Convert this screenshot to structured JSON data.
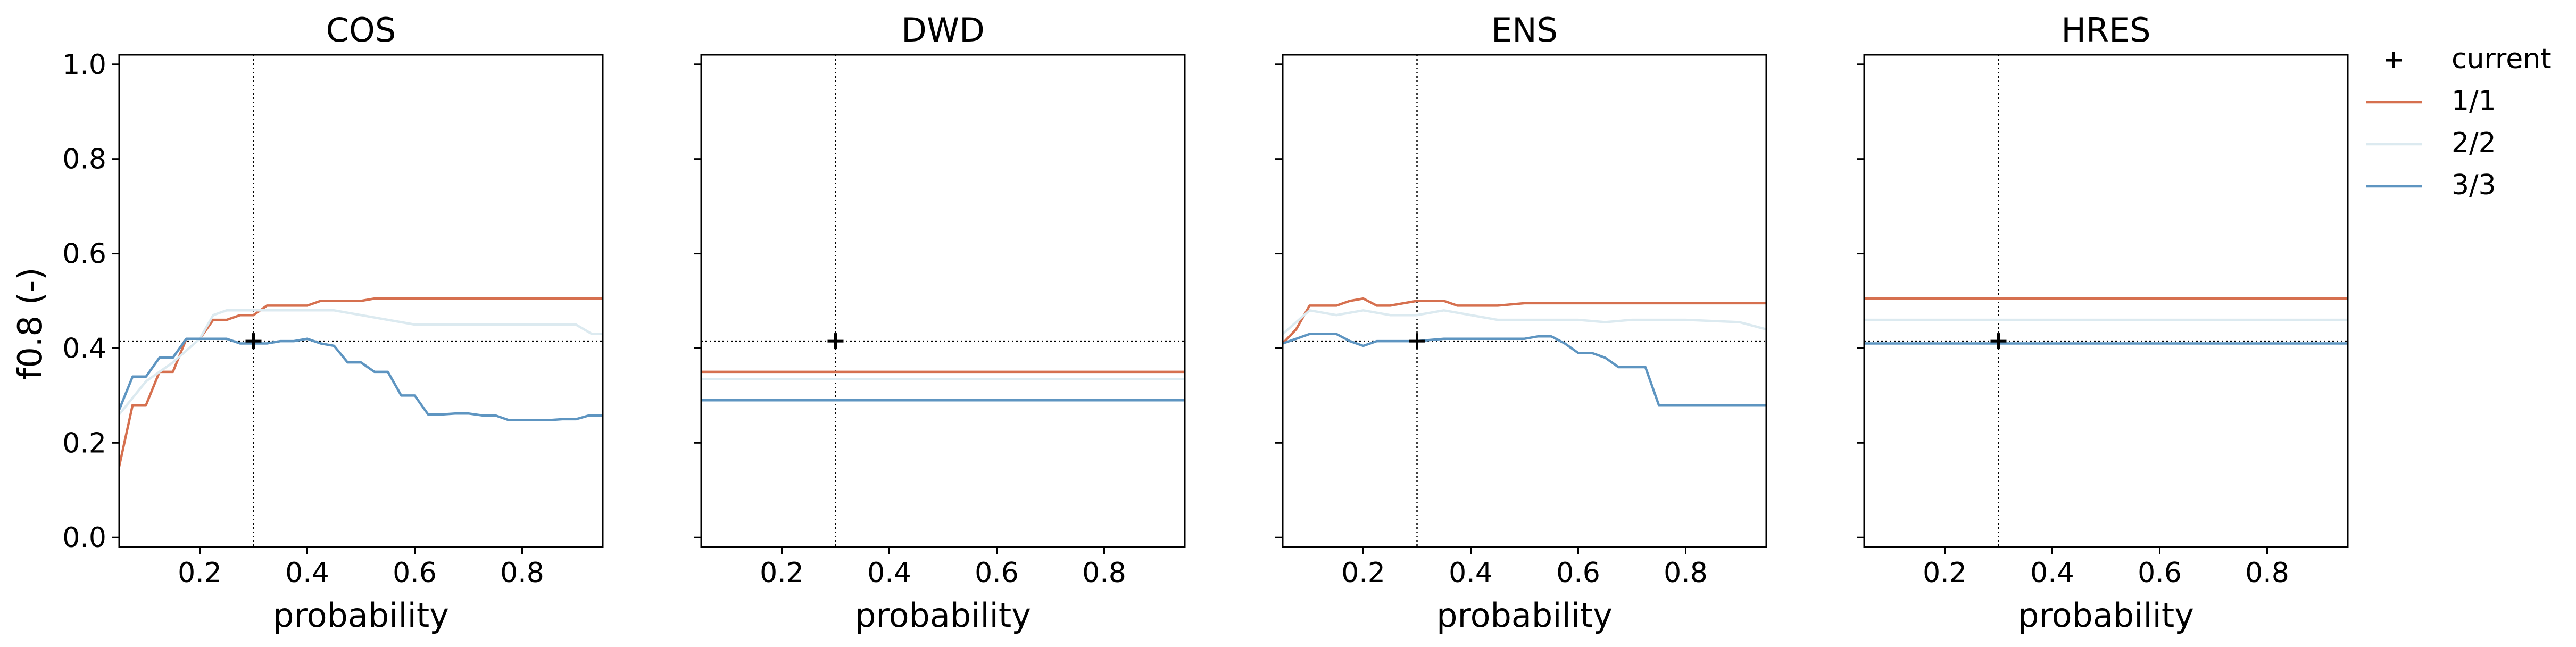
{
  "chart_data": {
    "type": "line",
    "ylabel": "f0.8 (-)",
    "xlabel": "probability",
    "xlim": [
      0.05,
      0.95
    ],
    "ylim": [
      -0.02,
      1.02
    ],
    "xticks": [
      "0.2",
      "0.4",
      "0.6",
      "0.8"
    ],
    "yticks": [
      "0.0",
      "0.2",
      "0.4",
      "0.6",
      "0.8",
      "1.0"
    ],
    "reference": {
      "x": 0.3,
      "y": 0.415
    },
    "legend": {
      "position": "outside-right",
      "entries": [
        {
          "label": "current",
          "marker": "plus",
          "color": "#000000"
        },
        {
          "label": "1/1",
          "color": "#d6704f"
        },
        {
          "label": "2/2",
          "color": "#dceaf0"
        },
        {
          "label": "3/3",
          "color": "#5e95c1"
        }
      ]
    },
    "panels": [
      {
        "title": "COS",
        "current": {
          "x": 0.3,
          "y": 0.415
        },
        "series": [
          {
            "name": "1/1",
            "color": "#d6704f",
            "x": [
              0.05,
              0.075,
              0.1,
              0.125,
              0.15,
              0.175,
              0.2,
              0.225,
              0.25,
              0.275,
              0.3,
              0.325,
              0.35,
              0.375,
              0.4,
              0.425,
              0.45,
              0.475,
              0.5,
              0.525,
              0.55,
              0.6,
              0.65,
              0.7,
              0.75,
              0.8,
              0.85,
              0.9,
              0.95
            ],
            "y": [
              0.15,
              0.28,
              0.28,
              0.35,
              0.35,
              0.42,
              0.42,
              0.46,
              0.46,
              0.47,
              0.47,
              0.49,
              0.49,
              0.49,
              0.49,
              0.5,
              0.5,
              0.5,
              0.5,
              0.505,
              0.505,
              0.505,
              0.505,
              0.505,
              0.505,
              0.505,
              0.505,
              0.505,
              0.505
            ]
          },
          {
            "name": "2/2",
            "color": "#dceaf0",
            "x": [
              0.05,
              0.1,
              0.15,
              0.2,
              0.225,
              0.25,
              0.3,
              0.325,
              0.35,
              0.4,
              0.45,
              0.5,
              0.55,
              0.6,
              0.7,
              0.8,
              0.9,
              0.93,
              0.95
            ],
            "y": [
              0.26,
              0.33,
              0.37,
              0.42,
              0.47,
              0.48,
              0.48,
              0.48,
              0.48,
              0.48,
              0.48,
              0.47,
              0.46,
              0.45,
              0.45,
              0.45,
              0.45,
              0.43,
              0.43
            ]
          },
          {
            "name": "3/3",
            "color": "#5e95c1",
            "x": [
              0.05,
              0.075,
              0.1,
              0.125,
              0.15,
              0.175,
              0.2,
              0.225,
              0.25,
              0.275,
              0.3,
              0.325,
              0.35,
              0.375,
              0.4,
              0.425,
              0.45,
              0.475,
              0.5,
              0.525,
              0.55,
              0.575,
              0.6,
              0.625,
              0.65,
              0.675,
              0.7,
              0.725,
              0.75,
              0.775,
              0.8,
              0.825,
              0.85,
              0.875,
              0.9,
              0.925,
              0.95
            ],
            "y": [
              0.27,
              0.34,
              0.34,
              0.38,
              0.38,
              0.42,
              0.42,
              0.42,
              0.42,
              0.41,
              0.41,
              0.41,
              0.415,
              0.415,
              0.42,
              0.41,
              0.405,
              0.37,
              0.37,
              0.35,
              0.35,
              0.3,
              0.3,
              0.26,
              0.26,
              0.262,
              0.262,
              0.258,
              0.258,
              0.248,
              0.248,
              0.248,
              0.248,
              0.25,
              0.25,
              0.258,
              0.258
            ]
          }
        ]
      },
      {
        "title": "DWD",
        "current": {
          "x": 0.3,
          "y": 0.415
        },
        "series": [
          {
            "name": "1/1",
            "color": "#d6704f",
            "x": [
              0.05,
              0.95
            ],
            "y": [
              0.35,
              0.35
            ]
          },
          {
            "name": "2/2",
            "color": "#dceaf0",
            "x": [
              0.05,
              0.95
            ],
            "y": [
              0.335,
              0.335
            ]
          },
          {
            "name": "3/3",
            "color": "#5e95c1",
            "x": [
              0.05,
              0.95
            ],
            "y": [
              0.29,
              0.29
            ]
          }
        ]
      },
      {
        "title": "ENS",
        "current": {
          "x": 0.3,
          "y": 0.415
        },
        "series": [
          {
            "name": "1/1",
            "color": "#d6704f",
            "x": [
              0.05,
              0.075,
              0.1,
              0.125,
              0.15,
              0.175,
              0.2,
              0.225,
              0.25,
              0.275,
              0.3,
              0.325,
              0.35,
              0.375,
              0.4,
              0.45,
              0.5,
              0.6,
              0.7,
              0.8,
              0.9,
              0.95
            ],
            "y": [
              0.41,
              0.44,
              0.49,
              0.49,
              0.49,
              0.5,
              0.505,
              0.49,
              0.49,
              0.495,
              0.5,
              0.5,
              0.5,
              0.49,
              0.49,
              0.49,
              0.495,
              0.495,
              0.495,
              0.495,
              0.495,
              0.495
            ]
          },
          {
            "name": "2/2",
            "color": "#dceaf0",
            "x": [
              0.05,
              0.1,
              0.15,
              0.2,
              0.25,
              0.3,
              0.35,
              0.4,
              0.45,
              0.5,
              0.55,
              0.6,
              0.65,
              0.7,
              0.8,
              0.9,
              0.95
            ],
            "y": [
              0.43,
              0.48,
              0.47,
              0.48,
              0.47,
              0.47,
              0.48,
              0.47,
              0.46,
              0.46,
              0.46,
              0.46,
              0.455,
              0.46,
              0.46,
              0.455,
              0.44
            ]
          },
          {
            "name": "3/3",
            "color": "#5e95c1",
            "x": [
              0.05,
              0.075,
              0.1,
              0.125,
              0.15,
              0.175,
              0.2,
              0.225,
              0.25,
              0.3,
              0.35,
              0.4,
              0.45,
              0.5,
              0.525,
              0.55,
              0.575,
              0.6,
              0.625,
              0.65,
              0.675,
              0.7,
              0.725,
              0.75,
              0.8,
              0.9,
              0.95
            ],
            "y": [
              0.41,
              0.42,
              0.43,
              0.43,
              0.43,
              0.415,
              0.405,
              0.415,
              0.415,
              0.415,
              0.42,
              0.42,
              0.42,
              0.42,
              0.425,
              0.425,
              0.41,
              0.39,
              0.39,
              0.38,
              0.36,
              0.36,
              0.36,
              0.28,
              0.28,
              0.28,
              0.28
            ]
          }
        ]
      },
      {
        "title": "HRES",
        "current": {
          "x": 0.3,
          "y": 0.415
        },
        "series": [
          {
            "name": "1/1",
            "color": "#d6704f",
            "x": [
              0.05,
              0.95
            ],
            "y": [
              0.505,
              0.505
            ]
          },
          {
            "name": "2/2",
            "color": "#dceaf0",
            "x": [
              0.05,
              0.95
            ],
            "y": [
              0.46,
              0.46
            ]
          },
          {
            "name": "3/3",
            "color": "#5e95c1",
            "x": [
              0.05,
              0.95
            ],
            "y": [
              0.41,
              0.41
            ]
          }
        ]
      }
    ]
  }
}
